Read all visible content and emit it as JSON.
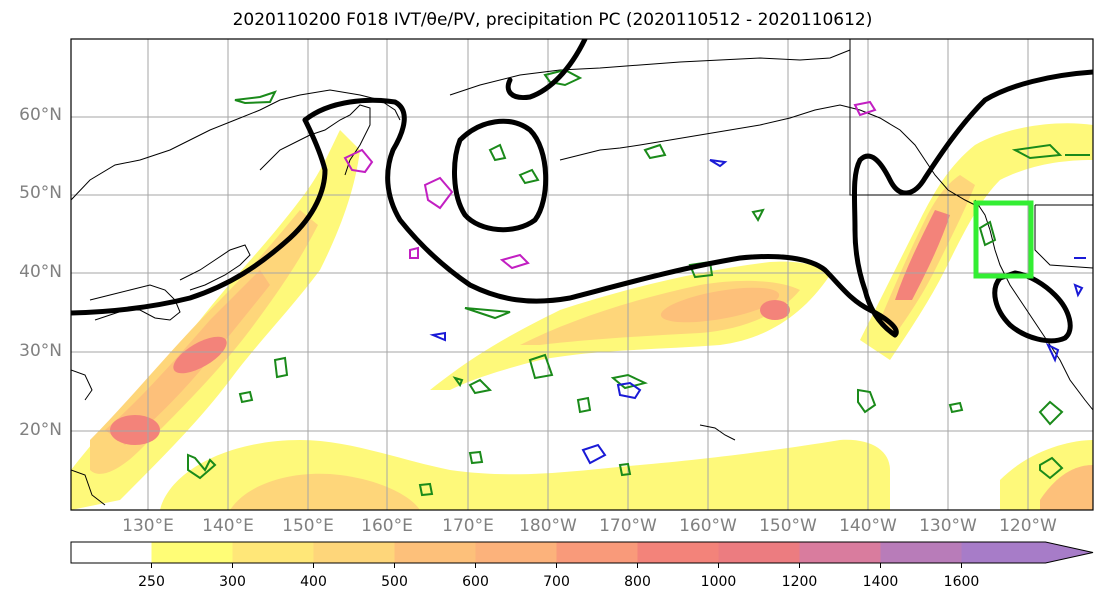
{
  "title": "2020110200 F018 IVT/θe/PV, precipitation PC (2020110512 - 2020110612)",
  "map": {
    "lat_labels": [
      "60°N",
      "50°N",
      "40°N",
      "30°N",
      "20°N"
    ],
    "lon_labels": [
      "130°E",
      "140°E",
      "150°E",
      "160°E",
      "170°E",
      "180°W",
      "170°W",
      "160°W",
      "150°W",
      "140°W",
      "130°W",
      "120°W"
    ],
    "colors": {
      "ivt_low": "#fef97a",
      "ivt_mid": "#fdc07a",
      "ivt_high": "#f3837a",
      "theta_e": "#000000",
      "pv_green": "#1a8a1a",
      "pv_magenta": "#c21fc2",
      "pv_blue": "#1a1ad6",
      "box": "#33ee33"
    }
  },
  "colorbar": {
    "ticks": [
      "250",
      "300",
      "400",
      "500",
      "600",
      "700",
      "800",
      "1000",
      "1200",
      "1400",
      "1600"
    ],
    "colors": [
      "#ffffff",
      "#fffd76",
      "#ffe778",
      "#fed67a",
      "#fdc07a",
      "#fcb27b",
      "#f99a7a",
      "#f3837a",
      "#ec7c80",
      "#d97c9e",
      "#b87cb9",
      "#a77cc8"
    ]
  }
}
